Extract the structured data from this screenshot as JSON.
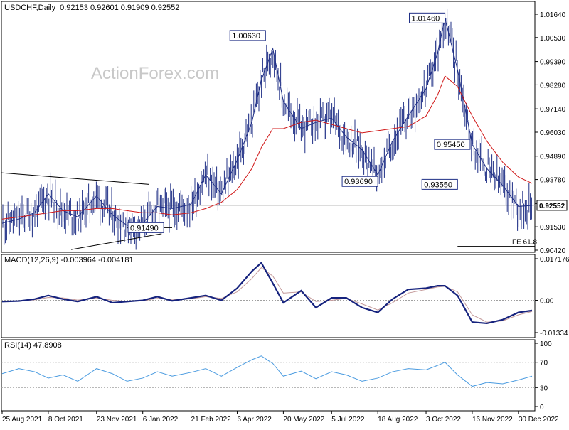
{
  "header": {
    "symbol": "USDCHF,Daily",
    "ohlc": "0.92153 0.92601 0.91909 0.92552"
  },
  "watermark": "ActionForex.com",
  "colors": {
    "bars": "#1f2f86",
    "ma": "#d01818",
    "macd_line": "#16237e",
    "macd_signal": "#c49a9a",
    "rsi_line": "#4a9be0",
    "label_border": "#1f2f86",
    "frame": "#000000",
    "grid": "#a0a0a0"
  },
  "chart_data": [
    {
      "type": "line",
      "name": "price",
      "title": "USDCHF,Daily",
      "ylim": [
        0.9042,
        1.0164
      ],
      "y_ticks": [
        "1.01640",
        "1.00530",
        "0.99390",
        "0.98280",
        "0.97140",
        "0.96030",
        "0.94890",
        "0.93780",
        "0.92640",
        "0.91530",
        "0.90420"
      ],
      "x_ticks": [
        "25 Aug 2021",
        "8 Oct 2021",
        "23 Nov 2021",
        "6 Jan 2022",
        "21 Feb 2022",
        "6 Apr 2022",
        "20 May 2022",
        "5 Jul 2022",
        "18 Aug 2022",
        "3 Oct 2022",
        "16 Nov 2022",
        "30 Dec 2022"
      ],
      "x": [
        "2021-08-25",
        "2021-09-10",
        "2021-09-25",
        "2021-10-08",
        "2021-10-22",
        "2021-11-05",
        "2021-11-23",
        "2021-12-08",
        "2021-12-22",
        "2022-01-06",
        "2022-01-20",
        "2022-02-03",
        "2022-02-21",
        "2022-03-07",
        "2022-03-22",
        "2022-04-06",
        "2022-04-20",
        "2022-04-29",
        "2022-05-10",
        "2022-05-20",
        "2022-06-06",
        "2022-06-20",
        "2022-07-05",
        "2022-07-19",
        "2022-08-03",
        "2022-08-18",
        "2022-09-01",
        "2022-09-16",
        "2022-10-03",
        "2022-10-14",
        "2022-10-21",
        "2022-11-02",
        "2022-11-16",
        "2022-11-30",
        "2022-12-15",
        "2022-12-30",
        "2023-01-12"
      ],
      "series": [
        {
          "name": "USDCHF",
          "values": [
            0.917,
            0.919,
            0.922,
            0.931,
            0.923,
            0.92,
            0.93,
            0.921,
            0.916,
            0.917,
            0.925,
            0.924,
            0.926,
            0.94,
            0.931,
            0.947,
            0.965,
            0.985,
            1.0,
            0.975,
            0.962,
            0.965,
            0.967,
            0.958,
            0.952,
            0.94,
            0.956,
            0.968,
            0.981,
            0.998,
            1.0146,
            0.99,
            0.9545,
            0.943,
            0.935,
            0.925,
            0.9255
          ]
        },
        {
          "name": "MA",
          "values": [
            0.919,
            0.92,
            0.921,
            0.922,
            0.923,
            0.923,
            0.924,
            0.924,
            0.923,
            0.922,
            0.922,
            0.921,
            0.922,
            0.924,
            0.927,
            0.933,
            0.943,
            0.953,
            0.962,
            0.962,
            0.965,
            0.966,
            0.964,
            0.962,
            0.96,
            0.961,
            0.962,
            0.963,
            0.968,
            0.978,
            0.987,
            0.982,
            0.968,
            0.956,
            0.946,
            0.939,
            0.936
          ]
        }
      ],
      "annotations": [
        "1.00630",
        "1.01460",
        "0.93690",
        "0.95450",
        "0.93550",
        "0.91490",
        "FE 61.8"
      ],
      "current_price": "0.92552"
    },
    {
      "type": "line",
      "name": "MACD",
      "title": "MACD(12,26,9) -0.003964 -0.004181",
      "ylim": [
        -0.01334,
        0.017176
      ],
      "y_ticks": [
        "0.017176",
        "0.00",
        "-0.01334"
      ],
      "series": [
        {
          "name": "MACD",
          "values": [
            -0.0005,
            -0.0003,
            0.0005,
            0.002,
            0.0005,
            -0.0005,
            0.0015,
            -0.001,
            -0.0005,
            0.0,
            0.0015,
            -0.0002,
            0.001,
            0.002,
            0.0,
            0.005,
            0.012,
            0.0155,
            0.007,
            -0.001,
            0.004,
            -0.003,
            0.001,
            0.001,
            -0.003,
            -0.005,
            0.0005,
            0.0045,
            0.005,
            0.006,
            0.006,
            0.002,
            -0.009,
            -0.0095,
            -0.008,
            -0.005,
            -0.0042
          ]
        },
        {
          "name": "Signal",
          "values": [
            -0.0004,
            -0.0003,
            0.0002,
            0.0012,
            0.001,
            0.0001,
            0.001,
            0.0,
            -0.0004,
            -0.0002,
            0.0008,
            0.0004,
            0.0006,
            0.0015,
            0.0008,
            0.0035,
            0.009,
            0.0135,
            0.01,
            0.003,
            0.0035,
            -0.0005,
            0.0,
            0.0008,
            -0.0015,
            -0.004,
            -0.001,
            0.003,
            0.0045,
            0.0055,
            0.0058,
            0.0035,
            -0.006,
            -0.009,
            -0.0085,
            -0.006,
            -0.0046
          ]
        }
      ]
    },
    {
      "type": "line",
      "name": "RSI",
      "title": "RSI(14) 47.8908",
      "ylim": [
        0,
        100
      ],
      "y_ticks": [
        "100",
        "70",
        "30",
        "0"
      ],
      "levels": [
        70,
        30
      ],
      "series": [
        {
          "name": "RSI",
          "values": [
            52,
            60,
            55,
            45,
            50,
            40,
            60,
            52,
            40,
            45,
            55,
            48,
            54,
            60,
            48,
            62,
            74,
            80,
            68,
            48,
            56,
            44,
            55,
            50,
            40,
            45,
            55,
            60,
            58,
            65,
            70,
            50,
            32,
            38,
            36,
            42,
            48
          ]
        }
      ]
    }
  ]
}
